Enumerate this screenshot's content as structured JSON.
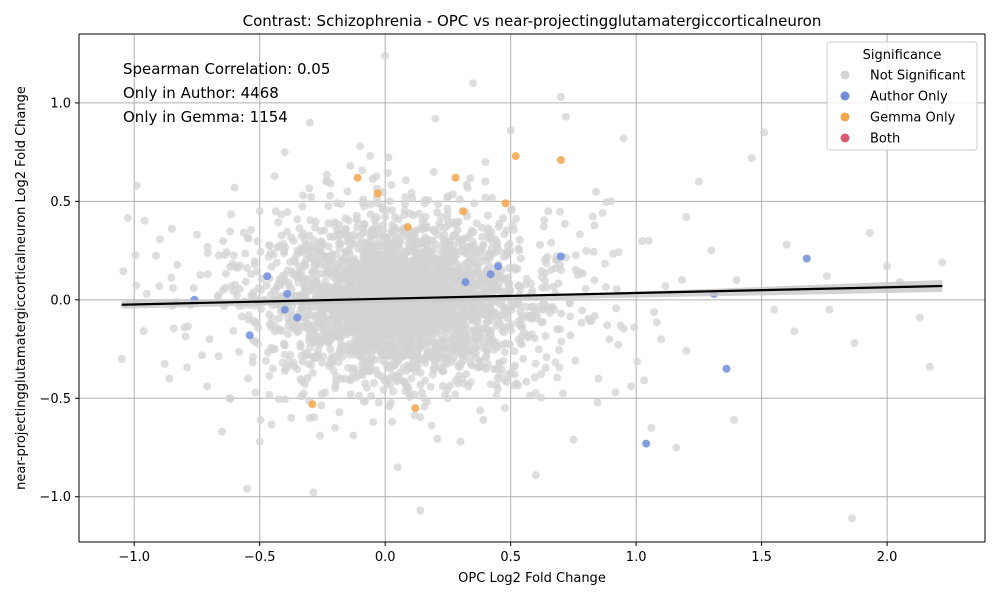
{
  "chart_data": {
    "type": "scatter",
    "title": "Contrast: Schizophrenia - OPC vs near-projectingglutamatergiccorticalneuron",
    "xlabel": "OPC Log2 Fold Change",
    "ylabel": "near-projectingglutamatergiccorticalneuron Log2 Fold Change",
    "xlim": [
      -1.22,
      2.39
    ],
    "ylim": [
      -1.23,
      1.35
    ],
    "xticks": [
      -1.0,
      -0.5,
      0.0,
      0.5,
      1.0,
      1.5,
      2.0
    ],
    "xtick_labels": [
      "−1.0",
      "−0.5",
      "0.0",
      "0.5",
      "1.0",
      "1.5",
      "2.0"
    ],
    "yticks": [
      -1.0,
      -0.5,
      0.0,
      0.5,
      1.0
    ],
    "ytick_labels": [
      "−1.0",
      "−0.5",
      "0.0",
      "0.5",
      "1.0"
    ],
    "grid": true,
    "annotations": [
      "Spearman Correlation: 0.05",
      "Only in Author: 4468",
      "Only in Gemma: 1154"
    ],
    "legend": {
      "title": "Significance",
      "placement": "top-right",
      "entries": [
        {
          "label": "Not Significant",
          "color": "#d3d3d3"
        },
        {
          "label": "Author Only",
          "color": "#6f8ddc"
        },
        {
          "label": "Gemma Only",
          "color": "#f5a54a"
        },
        {
          "label": "Both",
          "color": "#dc5a6e"
        }
      ]
    },
    "regression": {
      "x": [
        -1.05,
        2.22
      ],
      "y": [
        -0.025,
        0.07
      ],
      "color": "#000000"
    },
    "series": [
      {
        "name": "Not Significant",
        "color": "#d3d3d3",
        "points": [
          [
            -1.05,
            -0.3
          ],
          [
            -0.99,
            0.58
          ],
          [
            -0.95,
            0.03
          ],
          [
            -0.9,
            0.07
          ],
          [
            -0.86,
            -0.4
          ],
          [
            -0.85,
            0.36
          ],
          [
            -0.8,
            -0.14
          ],
          [
            -0.55,
            -0.96
          ],
          [
            -0.65,
            -0.67
          ],
          [
            -0.5,
            -0.72
          ],
          [
            0.0,
            1.24
          ],
          [
            0.35,
            1.1
          ],
          [
            0.7,
            1.03
          ],
          [
            0.72,
            0.93
          ],
          [
            1.51,
            0.85
          ],
          [
            1.46,
            0.72
          ],
          [
            0.95,
            0.82
          ],
          [
            1.6,
            0.28
          ],
          [
            1.76,
            0.12
          ],
          [
            1.77,
            -0.05
          ],
          [
            2.0,
            0.17
          ],
          [
            1.93,
            0.34
          ],
          [
            2.05,
            0.09
          ],
          [
            2.13,
            -0.09
          ],
          [
            2.17,
            -0.34
          ],
          [
            2.22,
            0.19
          ],
          [
            1.86,
            -1.11
          ],
          [
            1.87,
            -0.22
          ],
          [
            1.63,
            -0.16
          ],
          [
            0.14,
            -1.07
          ],
          [
            0.6,
            -0.89
          ],
          [
            1.06,
            -0.65
          ],
          [
            1.16,
            -0.75
          ],
          [
            1.39,
            -0.61
          ],
          [
            0.98,
            -0.44
          ],
          [
            -0.4,
            0.75
          ],
          [
            -0.3,
            0.9
          ],
          [
            0.2,
            0.92
          ],
          [
            0.5,
            0.86
          ],
          [
            -0.1,
            0.78
          ],
          [
            -0.6,
            0.57
          ],
          [
            -0.75,
            0.33
          ],
          [
            -0.7,
            -0.2
          ],
          [
            -0.62,
            -0.5
          ],
          [
            -0.2,
            -0.65
          ],
          [
            0.3,
            -0.72
          ],
          [
            0.75,
            -0.71
          ],
          [
            1.2,
            0.42
          ],
          [
            1.3,
            0.25
          ],
          [
            1.1,
            -0.2
          ],
          [
            0.9,
            0.5
          ],
          [
            0.85,
            -0.4
          ],
          [
            1.4,
            0.1
          ],
          [
            1.55,
            -0.05
          ],
          [
            0.05,
            -0.85
          ],
          [
            -0.3,
            -0.6
          ],
          [
            0.4,
            0.7
          ],
          [
            -0.5,
            0.45
          ],
          [
            1.25,
            0.6
          ],
          [
            1.05,
            0.3
          ],
          [
            0.65,
            0.45
          ],
          [
            -0.15,
            0.55
          ],
          [
            0.25,
            -0.5
          ],
          [
            0.55,
            -0.3
          ],
          [
            -0.35,
            0.25
          ]
        ]
      },
      {
        "name": "Author Only",
        "color": "#6f8ddc",
        "points": [
          [
            1.68,
            0.21
          ],
          [
            1.31,
            0.03
          ],
          [
            1.36,
            -0.35
          ],
          [
            1.04,
            -0.73
          ],
          [
            0.7,
            0.22
          ],
          [
            -0.76,
            0.0
          ],
          [
            -0.47,
            0.12
          ],
          [
            -0.54,
            -0.18
          ],
          [
            -0.39,
            0.03
          ],
          [
            -0.4,
            -0.05
          ],
          [
            -0.35,
            -0.09
          ],
          [
            0.32,
            0.09
          ],
          [
            0.42,
            0.13
          ],
          [
            0.45,
            0.17
          ]
        ]
      },
      {
        "name": "Gemma Only",
        "color": "#f5a54a",
        "points": [
          [
            0.52,
            0.73
          ],
          [
            0.7,
            0.71
          ],
          [
            -0.11,
            0.62
          ],
          [
            0.28,
            0.62
          ],
          [
            0.48,
            0.49
          ],
          [
            0.31,
            0.45
          ],
          [
            -0.03,
            0.54
          ],
          [
            0.09,
            0.37
          ],
          [
            -0.29,
            -0.53
          ],
          [
            0.12,
            -0.55
          ]
        ]
      },
      {
        "name": "Both",
        "color": "#dc5a6e",
        "points": []
      }
    ]
  }
}
